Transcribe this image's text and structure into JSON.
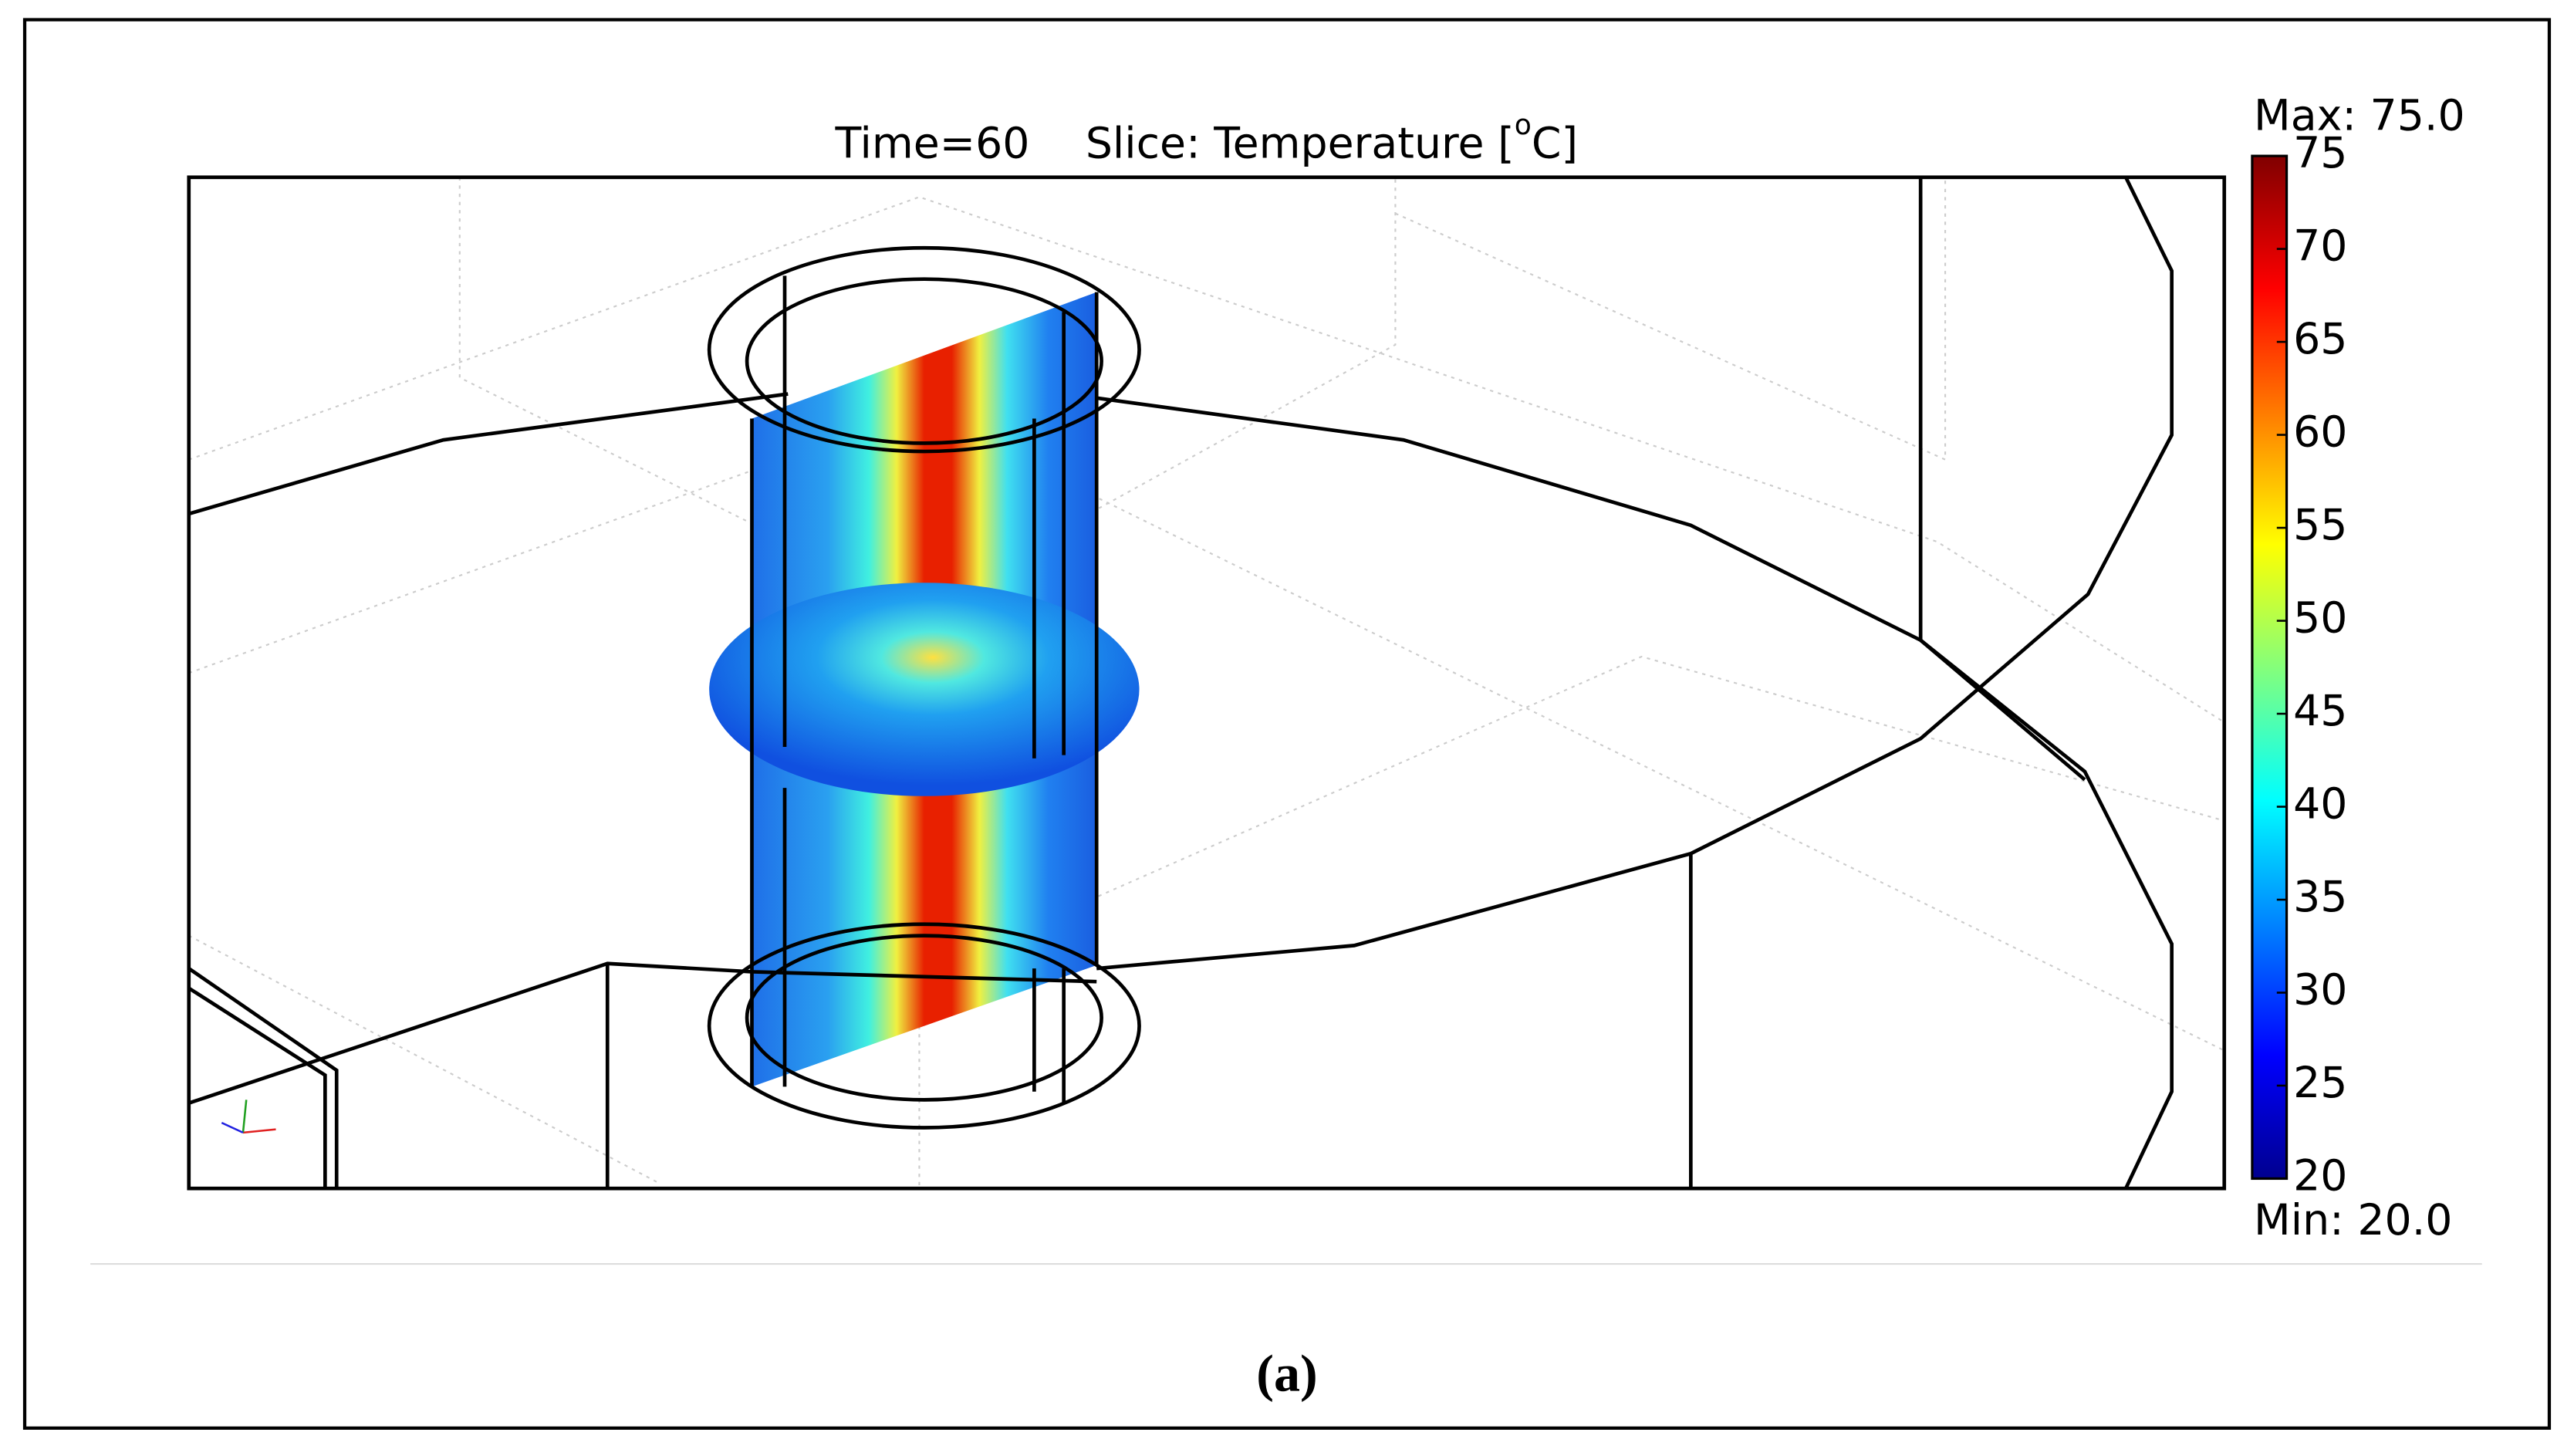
{
  "title": [
    "Time=60",
    "Slice: Temperature [",
    "o",
    "C]"
  ],
  "colorbar": {
    "max_label": "Max: 75.0",
    "min_label": "Min: 20.0",
    "range": [
      20,
      75
    ],
    "ticks": [
      20,
      25,
      30,
      35,
      40,
      45,
      50,
      55,
      60,
      65,
      70,
      75
    ]
  },
  "caption": "(a)"
}
